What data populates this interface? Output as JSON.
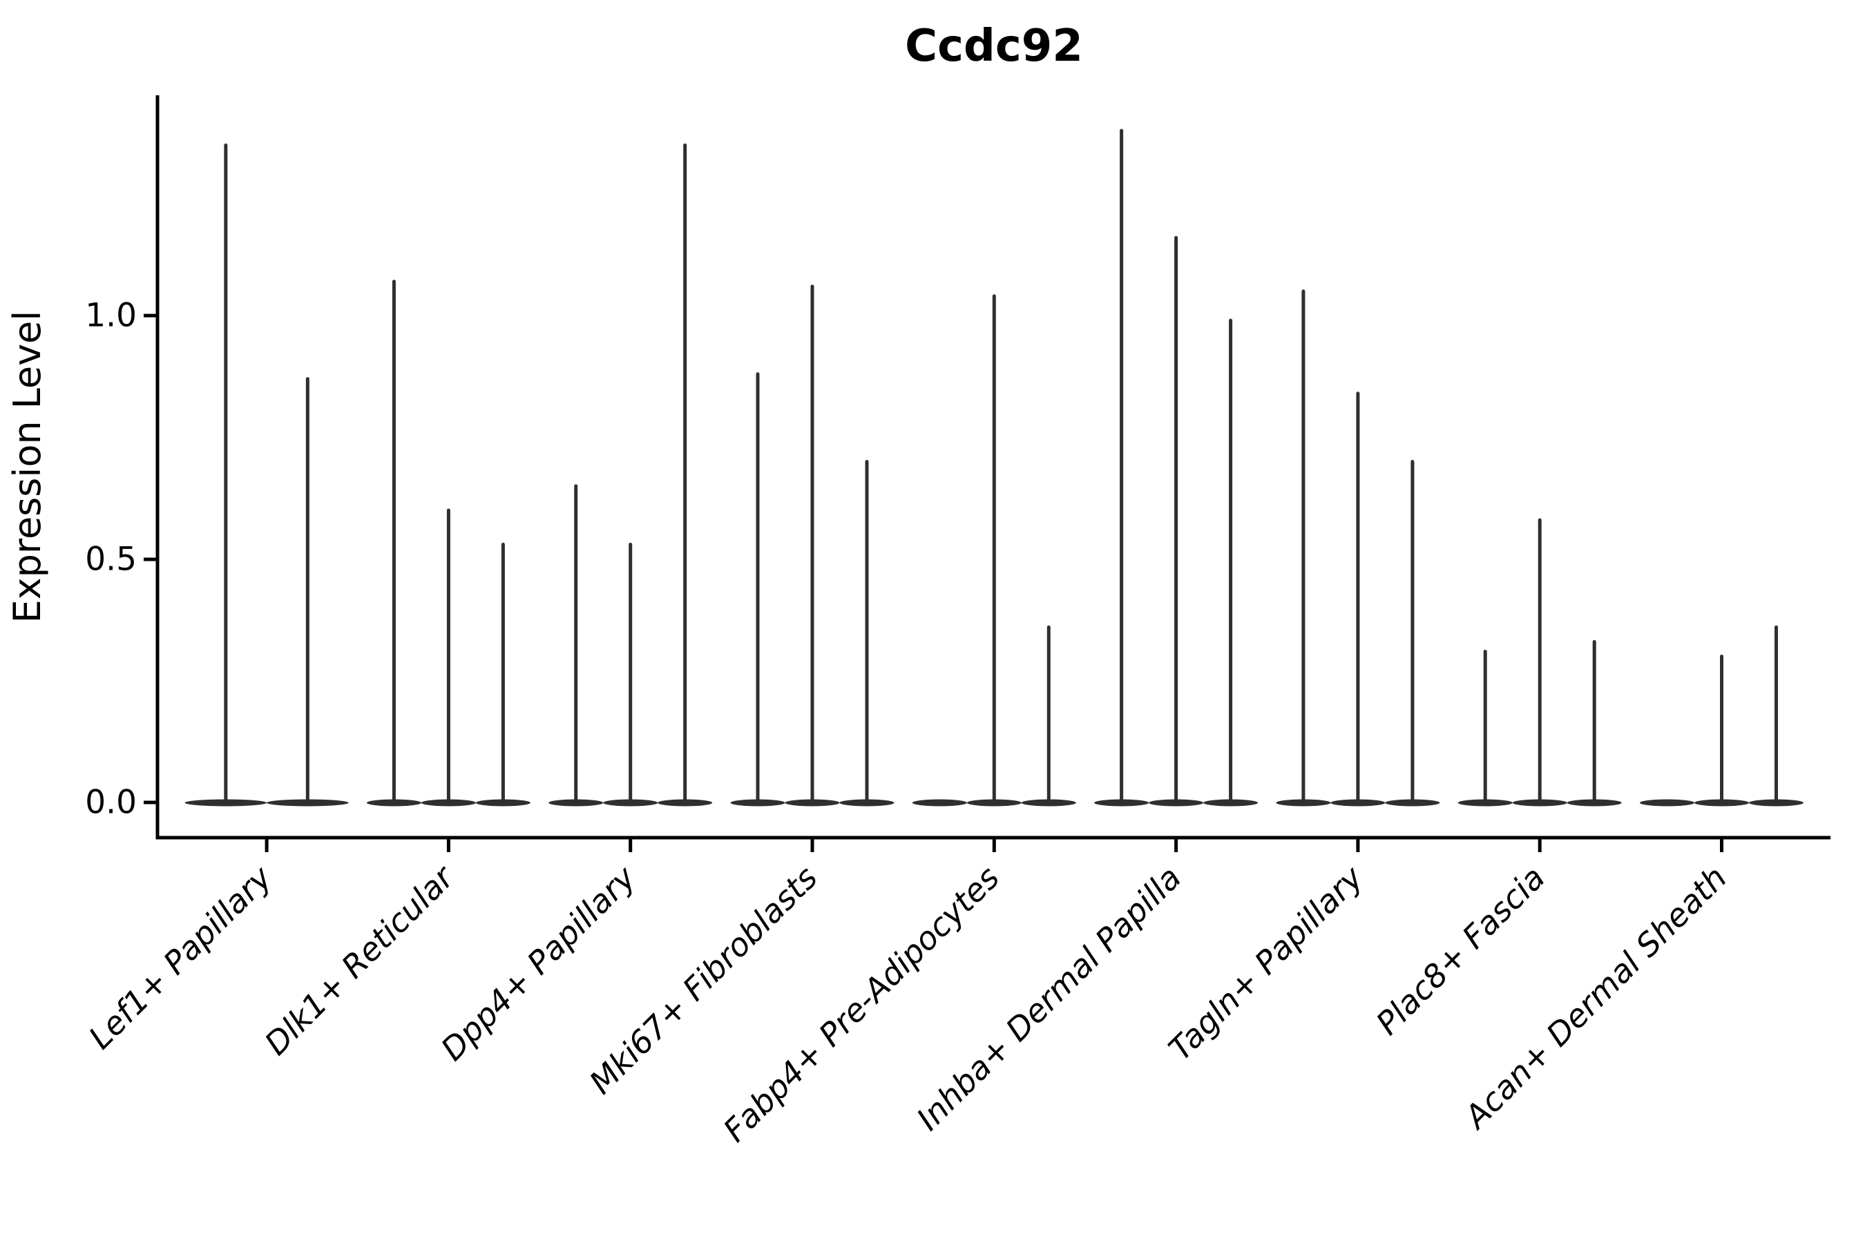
{
  "chart_data": {
    "type": "violin",
    "title": "Ccdc92",
    "ylabel": "Expression Level",
    "xlabel": "",
    "ylim": [
      -0.07,
      1.45
    ],
    "yticks": [
      0.0,
      0.5,
      1.0
    ],
    "ytick_labels": [
      "0.0",
      "0.5",
      "1.0"
    ],
    "grid": false,
    "legend_position": "none",
    "x_label_rotation_deg": 45,
    "x_label_style": "italic",
    "violin_color": "#2f2f2f",
    "axis_color": "#000000",
    "categories": [
      "Lef1+ Papillary",
      "Dlk1+ Reticular",
      "Dpp4+ Papillary",
      "Mki67+ Fibroblasts",
      "Fabp4+ Pre-Adipocytes",
      "Inhba+ Dermal Papilla",
      "Tagln+ Papillary",
      "Plac8+ Fascia",
      "Acan+ Dermal Sheath"
    ],
    "groups": [
      {
        "label": "Lef1+ Papillary",
        "violins": [
          {
            "offset": -0.225,
            "width": 0.45,
            "max": 1.35
          },
          {
            "offset": 0.225,
            "width": 0.45,
            "max": 0.87
          }
        ]
      },
      {
        "label": "Dlk1+ Reticular",
        "violins": [
          {
            "offset": -0.3,
            "width": 0.3,
            "max": 1.07
          },
          {
            "offset": 0.0,
            "width": 0.3,
            "max": 0.6
          },
          {
            "offset": 0.3,
            "width": 0.3,
            "max": 0.53
          }
        ]
      },
      {
        "label": "Dpp4+ Papillary",
        "violins": [
          {
            "offset": -0.3,
            "width": 0.3,
            "max": 0.65
          },
          {
            "offset": 0.0,
            "width": 0.3,
            "max": 0.53
          },
          {
            "offset": 0.3,
            "width": 0.3,
            "max": 1.35
          }
        ]
      },
      {
        "label": "Mki67+ Fibroblasts",
        "violins": [
          {
            "offset": -0.3,
            "width": 0.3,
            "max": 0.88
          },
          {
            "offset": 0.0,
            "width": 0.3,
            "max": 1.06
          },
          {
            "offset": 0.3,
            "width": 0.3,
            "max": 0.7
          }
        ]
      },
      {
        "label": "Fabp4+ Pre-Adipocytes",
        "violins": [
          {
            "offset": -0.3,
            "width": 0.3,
            "max": 0.0
          },
          {
            "offset": 0.0,
            "width": 0.3,
            "max": 1.04
          },
          {
            "offset": 0.3,
            "width": 0.3,
            "max": 0.36
          }
        ]
      },
      {
        "label": "Inhba+ Dermal Papilla",
        "violins": [
          {
            "offset": -0.3,
            "width": 0.3,
            "max": 1.38
          },
          {
            "offset": 0.0,
            "width": 0.3,
            "max": 1.16
          },
          {
            "offset": 0.3,
            "width": 0.3,
            "max": 0.99
          }
        ]
      },
      {
        "label": "Tagln+ Papillary",
        "violins": [
          {
            "offset": -0.3,
            "width": 0.3,
            "max": 1.05
          },
          {
            "offset": 0.0,
            "width": 0.3,
            "max": 0.84
          },
          {
            "offset": 0.3,
            "width": 0.3,
            "max": 0.7
          }
        ]
      },
      {
        "label": "Plac8+ Fascia",
        "violins": [
          {
            "offset": -0.3,
            "width": 0.3,
            "max": 0.31
          },
          {
            "offset": 0.0,
            "width": 0.3,
            "max": 0.58
          },
          {
            "offset": 0.3,
            "width": 0.3,
            "max": 0.33
          }
        ]
      },
      {
        "label": "Acan+ Dermal Sheath",
        "violins": [
          {
            "offset": -0.3,
            "width": 0.3,
            "max": 0.0
          },
          {
            "offset": 0.0,
            "width": 0.3,
            "max": 0.3
          },
          {
            "offset": 0.3,
            "width": 0.3,
            "max": 0.36
          }
        ]
      }
    ]
  }
}
